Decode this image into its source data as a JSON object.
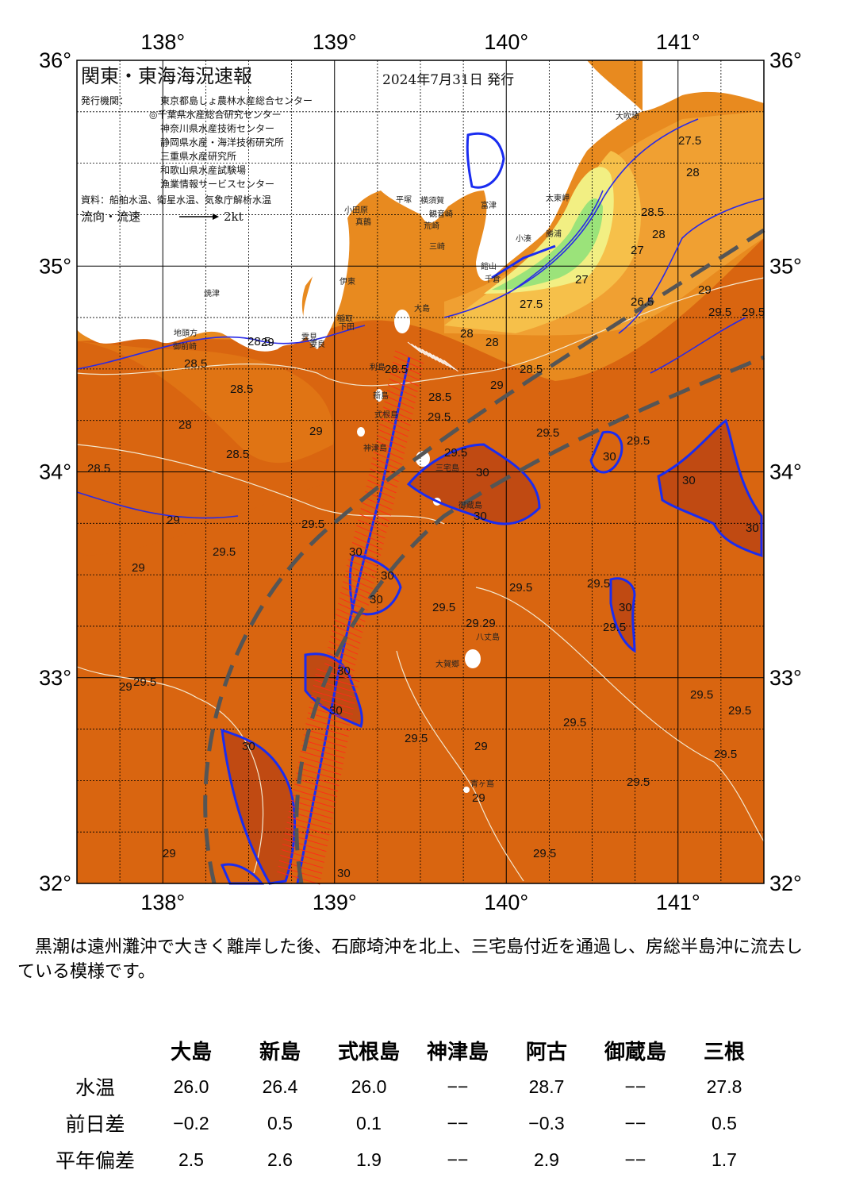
{
  "map": {
    "title": "関東・東海海況速報",
    "issue_date": "2024年7月31日 発行",
    "issuer_label": "発行機関：",
    "issuers": [
      "東京都島しょ農林水産総合センター",
      "◎千葉県水産総合研究センター",
      "神奈川県水産技術センター",
      "静岡県水産・海洋技術研究所",
      "三重県水産研究所",
      "和歌山県水産試験場",
      "漁業情報サービスセンター"
    ],
    "source": "資料：船舶水温、衛星水温、気象庁解析水温",
    "flow_legend_label": "流向・流速",
    "flow_legend_value": "2kt",
    "lon_labels": [
      "138°",
      "139°",
      "140°",
      "141°"
    ],
    "lat_labels": [
      "36°",
      "35°",
      "34°",
      "33°",
      "32°"
    ],
    "place_names": [
      "大吹埼",
      "太東岬",
      "勝浦",
      "小湊",
      "富津",
      "館山",
      "千倉",
      "三崎",
      "荒崎",
      "横須賀",
      "観音崎",
      "平塚",
      "小田原",
      "真鶴",
      "伊東",
      "稲取",
      "下田",
      "雲見",
      "妻良",
      "焼津",
      "地頭方",
      "御前崎",
      "大島",
      "利島",
      "新島",
      "式根島",
      "神津島",
      "三宅島",
      "御蔵島",
      "八丈島",
      "青ヶ島",
      "大賀郷"
    ],
    "isotherm_labels": [
      "26.5",
      "27",
      "27.5",
      "28",
      "28.5",
      "29",
      "29.5",
      "30"
    ],
    "colors": {
      "sst_26": "#9be37a",
      "sst_27": "#f2ef83",
      "sst_27_5": "#f6c04a",
      "sst_28": "#f0a032",
      "sst_28_5": "#e88a1f",
      "sst_29": "#e07414",
      "sst_29_5": "#d96510",
      "sst_30": "#c04a12",
      "land": "#ffffff",
      "kuroshio_axis": "#1a2cf0",
      "contour": "#2a2ae6",
      "current_arrows": "#ff2a1a",
      "front_dashed": "#555555"
    }
  },
  "summary": "黒潮は遠州灘沖で大きく離岸した後、石廊埼沖を北上、三宅島付近を通過し、房総半島沖に流去している模様です。",
  "table": {
    "columns": [
      "大島",
      "新島",
      "式根島",
      "神津島",
      "阿古",
      "御蔵島",
      "三根"
    ],
    "rows": [
      {
        "label": "水温",
        "values": [
          "26.0",
          "26.4",
          "26.0",
          "−−",
          "28.7",
          "−−",
          "27.8"
        ]
      },
      {
        "label": "前日差",
        "values": [
          "−0.2",
          "0.5",
          "0.1",
          "−−",
          "−0.3",
          "−−",
          "0.5"
        ]
      },
      {
        "label": "平年偏差",
        "values": [
          "2.5",
          "2.6",
          "1.9",
          "−−",
          "2.9",
          "−−",
          "1.7"
        ]
      }
    ]
  }
}
